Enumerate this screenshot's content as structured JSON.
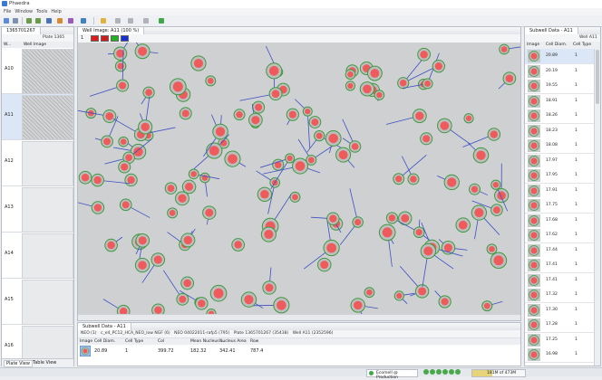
{
  "app": {
    "title": "Phaedra",
    "menu": [
      "File",
      "Window",
      "Tools",
      "Help"
    ]
  },
  "left_panel": {
    "tab": "1365701267",
    "plate_label": "Plate 1365",
    "columns": [
      "W...",
      "Well Image"
    ],
    "wells": [
      "A10",
      "A11",
      "A12",
      "A13",
      "A14",
      "A15",
      "A16"
    ],
    "bottom_tabs": [
      "Plate View",
      "Table View"
    ]
  },
  "well_image": {
    "tab": "Well Image: A11 (100 %)",
    "zoom_label": "1",
    "channels": [
      "#e01b1b",
      "#d21c1c",
      "#22b322",
      "#1a2fd6"
    ]
  },
  "right_panel": {
    "tab": "Subwell Data - A11",
    "well_label": "Well A11",
    "columns": [
      "Image",
      "Cell Diam.",
      "Cell Type"
    ],
    "rows": [
      {
        "diam": "20.89",
        "type": "1"
      },
      {
        "diam": "20.19",
        "type": "1"
      },
      {
        "diam": "19.55",
        "type": "1"
      },
      {
        "diam": "18.91",
        "type": "1"
      },
      {
        "diam": "18.26",
        "type": "1"
      },
      {
        "diam": "18.23",
        "type": "1"
      },
      {
        "diam": "18.08",
        "type": "1"
      },
      {
        "diam": "17.97",
        "type": "1"
      },
      {
        "diam": "17.95",
        "type": "1"
      },
      {
        "diam": "17.91",
        "type": "1"
      },
      {
        "diam": "17.75",
        "type": "1"
      },
      {
        "diam": "17.68",
        "type": "1"
      },
      {
        "diam": "17.62",
        "type": "1"
      },
      {
        "diam": "17.44",
        "type": "1"
      },
      {
        "diam": "17.41",
        "type": "1"
      },
      {
        "diam": "17.41",
        "type": "1"
      },
      {
        "diam": "17.32",
        "type": "1"
      },
      {
        "diam": "17.30",
        "type": "1"
      },
      {
        "diam": "17.28",
        "type": "1"
      },
      {
        "diam": "17.25",
        "type": "1"
      },
      {
        "diam": "16.98",
        "type": "1"
      }
    ]
  },
  "bottom_panel": {
    "tab": "Subwell Data - A11",
    "breadcrumbs": [
      "NEO (1)",
      "c_e4_PC12_HCA_NEO_low NGF (6)",
      "NEO 04022011-rafp5 (795)",
      "Plate 1365701267 (35438)",
      "Well A11 (2352596)"
    ],
    "columns": [
      "Image",
      "Cell Diam.",
      "Cell Type",
      "Col",
      "Mean Nucleus ...",
      "Nucleus Area",
      "Row"
    ],
    "row": {
      "diam": "20.89",
      "type": "1",
      "col": "399.72",
      "mean_nucleus": "182.32",
      "nucleus_area": "342.41",
      "row": "787.4"
    }
  },
  "status": {
    "env": "Ecomell @ Production",
    "memory": "181M of 473M"
  }
}
